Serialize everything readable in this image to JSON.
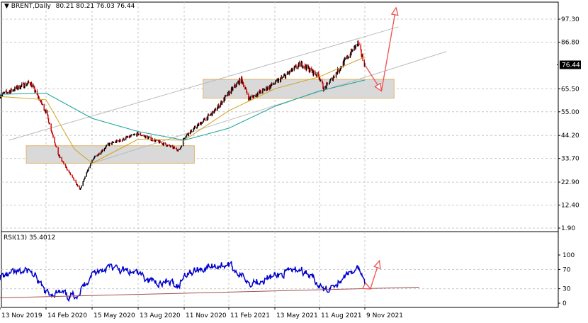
{
  "header": {
    "symbol_label": "BRENT,Daily",
    "ohlc": "80.21 80.21 76.03 76.44"
  },
  "rsi_header": "RSI(13) 35.4012",
  "colors": {
    "background": "#ffffff",
    "grid": "#c8c8c8",
    "up_candle": "#000000",
    "down_candle": "#cc0000",
    "ma_fast": "#d4a017",
    "ma_slow": "#1aa39a",
    "channel": "#b8bcbf",
    "zone_fill": "#d9d9d9",
    "zone_border": "#e0b46a",
    "arrow": "#ef4f4f",
    "rsi_line": "#0000cc",
    "rsi_trend": "#a05050",
    "current_price_bg": "#000000"
  },
  "chart_data": [
    {
      "type": "candlestick",
      "symbol": "BRENT",
      "timeframe": "Daily",
      "current_price": 76.44,
      "current_price_label": "76.44",
      "yticks": [
        "97.30",
        "86.80",
        "76.44",
        "65.50",
        "55.00",
        "44.20",
        "33.70",
        "22.90",
        "12.40",
        "1.90"
      ],
      "ylim": [
        1.9,
        97.3
      ],
      "xticks": [
        "13 Nov 2019",
        "14 Feb 2020",
        "15 May 2020",
        "13 Aug 2020",
        "11 Nov 2020",
        "11 Feb 2021",
        "13 May 2021",
        "11 Aug 2021",
        "9 Nov 2021"
      ],
      "price_path": [
        [
          "13 Nov 2019",
          62.5
        ],
        [
          "13 Jan 2020",
          68.5
        ],
        [
          "14 Feb 2020",
          55.0
        ],
        [
          "10 Mar 2020",
          35.0
        ],
        [
          "21 Apr 2020",
          19.5
        ],
        [
          "15 May 2020",
          33.0
        ],
        [
          "15 Jun 2020",
          40.0
        ],
        [
          "13 Aug 2020",
          45.0
        ],
        [
          "2 Nov 2020",
          37.5
        ],
        [
          "11 Nov 2020",
          43.5
        ],
        [
          "11 Jan 2021",
          55.0
        ],
        [
          "11 Feb 2021",
          63.5
        ],
        [
          "8 Mar 2021",
          70.0
        ],
        [
          "23 Mar 2021",
          61.0
        ],
        [
          "13 May 2021",
          68.0
        ],
        [
          "5 Jul 2021",
          77.0
        ],
        [
          "20 Aug 2021",
          65.2
        ],
        [
          "11 Aug 2021",
          71.0
        ],
        [
          "26 Oct 2021",
          86.3
        ],
        [
          "9 Nov 2021",
          76.44
        ]
      ],
      "ma_fast_path": [
        [
          "13 Nov 2019",
          62.0
        ],
        [
          "14 Feb 2020",
          60.5
        ],
        [
          "10 Apr 2020",
          38.0
        ],
        [
          "15 May 2020",
          31.5
        ],
        [
          "13 Aug 2020",
          42.5
        ],
        [
          "11 Nov 2020",
          42.0
        ],
        [
          "11 Feb 2021",
          55.5
        ],
        [
          "13 May 2021",
          65.5
        ],
        [
          "11 Aug 2021",
          71.0
        ],
        [
          "9 Nov 2021",
          80.0
        ]
      ],
      "ma_slow_path": [
        [
          "13 Nov 2019",
          63.0
        ],
        [
          "14 Feb 2020",
          63.5
        ],
        [
          "15 May 2020",
          52.0
        ],
        [
          "13 Aug 2020",
          46.0
        ],
        [
          "11 Nov 2020",
          42.0
        ],
        [
          "11 Feb 2021",
          47.5
        ],
        [
          "13 May 2021",
          57.5
        ],
        [
          "11 Aug 2021",
          64.5
        ],
        [
          "9 Nov 2021",
          69.5
        ]
      ],
      "channel_upper": [
        [
          "1 Dec 2019",
          42.0
        ],
        [
          "15 Jan 2022",
          93.8
        ]
      ],
      "channel_lower": [
        [
          "15 May 2020",
          31.5
        ],
        [
          "20 Apr 2022",
          82.5
        ]
      ],
      "zones": [
        {
          "from": "5 Jan 2020",
          "to": "2 Dec 2020",
          "low": 31.5,
          "high": 39.5
        },
        {
          "from": "20 Dec 2020",
          "to": "6 Jan 2022",
          "low": 61.2,
          "high": 69.8
        }
      ],
      "arrows": [
        {
          "points": [
            [
              "9 Nov 2021",
              76.44
            ],
            [
              "12 Dec 2021",
              64.5
            ]
          ]
        },
        {
          "points": [
            [
              "12 Dec 2021",
              64.5
            ],
            [
              "10 Jan 2022",
              102.5
            ]
          ]
        }
      ]
    },
    {
      "type": "line",
      "name": "RSI(13)",
      "last_value": 35.4012,
      "ylim": [
        0,
        100
      ],
      "yticks": [
        "100",
        "70",
        "30",
        "0"
      ],
      "levels": [
        70,
        30
      ],
      "rsi_path": [
        [
          "13 Nov 2019",
          55
        ],
        [
          "13 Jan 2020",
          68
        ],
        [
          "14 Feb 2020",
          20
        ],
        [
          "10 Mar 2020",
          22
        ],
        [
          "1 Apr 2020",
          12
        ],
        [
          "21 Apr 2020",
          24
        ],
        [
          "15 May 2020",
          62
        ],
        [
          "15 Jun 2020",
          75
        ],
        [
          "13 Aug 2020",
          60
        ],
        [
          "15 Sep 2020",
          45
        ],
        [
          "2 Nov 2020",
          38
        ],
        [
          "11 Nov 2020",
          62
        ],
        [
          "11 Jan 2021",
          78
        ],
        [
          "11 Feb 2021",
          80
        ],
        [
          "23 Mar 2021",
          45
        ],
        [
          "13 May 2021",
          55
        ],
        [
          "5 Jul 2021",
          72
        ],
        [
          "20 Aug 2021",
          25
        ],
        [
          "11 Aug 2021",
          35
        ],
        [
          "26 Oct 2021",
          76
        ],
        [
          "9 Nov 2021",
          35.4
        ]
      ],
      "trendline": [
        [
          "13 Nov 2019",
          11.0
        ],
        [
          "25 Feb 2022",
          33.0
        ]
      ],
      "arrows": [
        {
          "points": [
            [
              "9 Nov 2021",
              35.4
            ],
            [
              "20 Nov 2021",
              29.5
            ]
          ]
        },
        {
          "points": [
            [
              "20 Nov 2021",
              29.5
            ],
            [
              "8 Dec 2021",
              88.0
            ]
          ]
        }
      ]
    }
  ]
}
